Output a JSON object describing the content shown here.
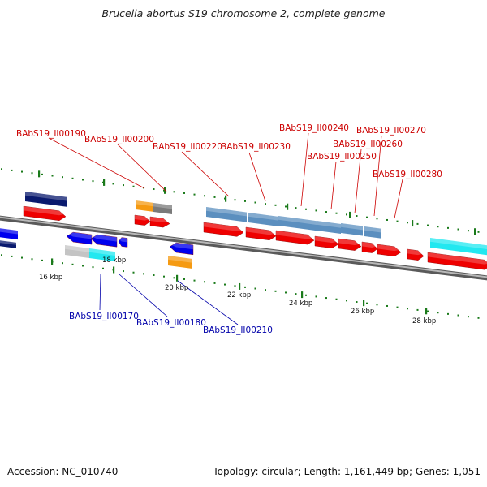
{
  "title": "Brucella abortus S19 chromosome 2, complete genome",
  "footer": {
    "accession": "Accession: NC_010740",
    "summary": "Topology: circular; Length: 1,161,449 bp; Genes: 1,051"
  },
  "colors": {
    "forward_gene": "#ee0000",
    "reverse_gene": "#0000ee",
    "steelblue_feature": "#5b8fbf",
    "navy_feature": "#0a1a6e",
    "orange_feature": "#f59a12",
    "gray_feature": "#7a7a7a",
    "lightgray_feature": "#c4c4c4",
    "cyan_feature": "#22e8f0",
    "backbone": "#888888",
    "tick": "#1a7a1a",
    "top_label": "#cc0000",
    "bottom_label": "#0000aa"
  },
  "scale_labels": [
    "16 kbp",
    "18 kbp",
    "20 kbp",
    "22 kbp",
    "24 kbp",
    "26 kbp",
    "28 kbp"
  ],
  "top_labels": [
    "BAbS19_II00190",
    "BAbS19_II00200",
    "BAbS19_II00220",
    "BAbS19_II00230",
    "BAbS19_II00240",
    "BAbS19_II00250",
    "BAbS19_II00260",
    "BAbS19_II00270",
    "BAbS19_II00280"
  ],
  "bottom_labels": [
    "BAbS19_II00170",
    "BAbS19_II00180",
    "BAbS19_II00210"
  ]
}
